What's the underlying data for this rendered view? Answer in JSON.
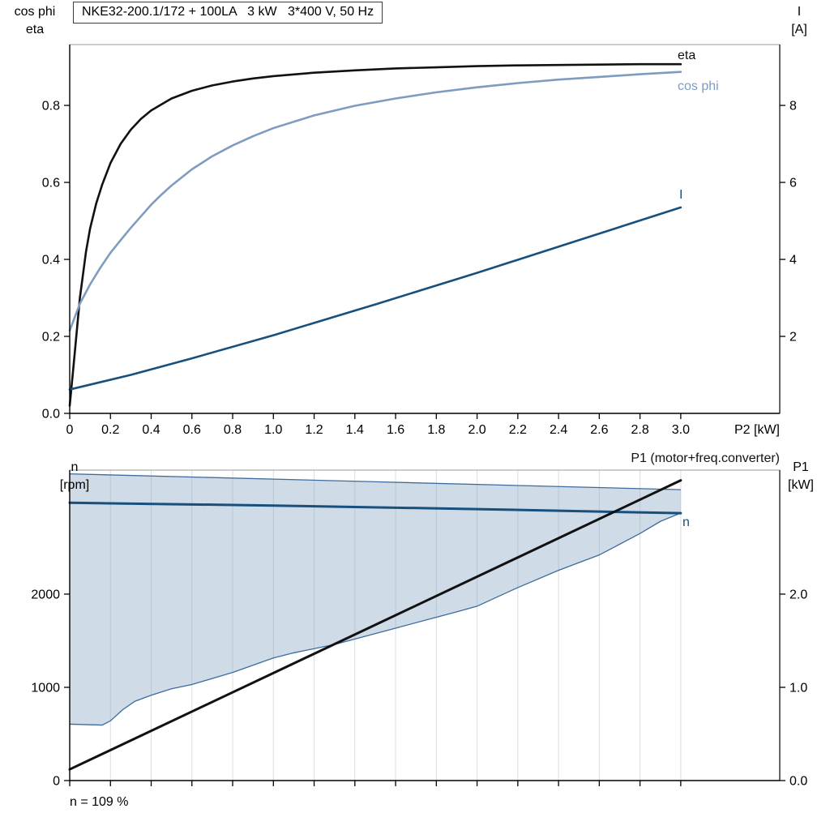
{
  "chart_data": [
    {
      "type": "line",
      "title": "NKE32-200.1/172 + 100LA   3 kW   3*400 V, 50 Hz",
      "x": {
        "label": "P2 [kW]",
        "min": 0,
        "max": 3.486,
        "show_labels": true,
        "ticks": [
          {
            "v": 0,
            "t": "0"
          },
          {
            "v": 0.2,
            "t": "0.2"
          },
          {
            "v": 0.4,
            "t": "0.4"
          },
          {
            "v": 0.6,
            "t": "0.6"
          },
          {
            "v": 0.8,
            "t": "0.8"
          },
          {
            "v": 1,
            "t": "1.0"
          },
          {
            "v": 1.2,
            "t": "1.2"
          },
          {
            "v": 1.4,
            "t": "1.4"
          },
          {
            "v": 1.6,
            "t": "1.6"
          },
          {
            "v": 1.8,
            "t": "1.8"
          },
          {
            "v": 2,
            "t": "2.0"
          },
          {
            "v": 2.2,
            "t": "2.2"
          },
          {
            "v": 2.4,
            "t": "2.4"
          },
          {
            "v": 2.6,
            "t": "2.6"
          },
          {
            "v": 2.8,
            "t": "2.8"
          },
          {
            "v": 3,
            "t": "3.0"
          }
        ]
      },
      "y_left": {
        "label_lines": [
          "cos phi",
          "eta"
        ],
        "min": 0,
        "max": 0.958,
        "ticks": [
          {
            "v": 0,
            "t": "0.0"
          },
          {
            "v": 0.2,
            "t": "0.2"
          },
          {
            "v": 0.4,
            "t": "0.4"
          },
          {
            "v": 0.6,
            "t": "0.6"
          },
          {
            "v": 0.8,
            "t": "0.8"
          }
        ]
      },
      "y_right": {
        "label_lines": [
          "I",
          "[A]"
        ],
        "min": 0,
        "max": 9.58,
        "ticks": [
          {
            "v": 2,
            "t": "2"
          },
          {
            "v": 4,
            "t": "4"
          },
          {
            "v": 6,
            "t": "6"
          },
          {
            "v": 8,
            "t": "8"
          }
        ]
      },
      "series": [
        {
          "name": "eta",
          "axis": "left",
          "color": "#111111",
          "width": 2.6,
          "points": [
            [
              0,
              0.02
            ],
            [
              0.02,
              0.13
            ],
            [
              0.05,
              0.3
            ],
            [
              0.08,
              0.42
            ],
            [
              0.1,
              0.48
            ],
            [
              0.13,
              0.545
            ],
            [
              0.16,
              0.595
            ],
            [
              0.2,
              0.65
            ],
            [
              0.25,
              0.7
            ],
            [
              0.3,
              0.737
            ],
            [
              0.35,
              0.765
            ],
            [
              0.4,
              0.787
            ],
            [
              0.5,
              0.818
            ],
            [
              0.6,
              0.838
            ],
            [
              0.7,
              0.852
            ],
            [
              0.8,
              0.862
            ],
            [
              0.9,
              0.87
            ],
            [
              1,
              0.876
            ],
            [
              1.2,
              0.885
            ],
            [
              1.4,
              0.891
            ],
            [
              1.6,
              0.896
            ],
            [
              1.8,
              0.899
            ],
            [
              2,
              0.902
            ],
            [
              2.2,
              0.904
            ],
            [
              2.4,
              0.905
            ],
            [
              2.6,
              0.906
            ],
            [
              2.8,
              0.907
            ],
            [
              3,
              0.907
            ]
          ]
        },
        {
          "name": "cos phi",
          "axis": "left",
          "color": "#7e9cc0",
          "width": 2.6,
          "points": [
            [
              0,
              0.215
            ],
            [
              0.05,
              0.285
            ],
            [
              0.1,
              0.335
            ],
            [
              0.15,
              0.378
            ],
            [
              0.2,
              0.417
            ],
            [
              0.25,
              0.45
            ],
            [
              0.3,
              0.482
            ],
            [
              0.35,
              0.512
            ],
            [
              0.4,
              0.542
            ],
            [
              0.45,
              0.568
            ],
            [
              0.5,
              0.592
            ],
            [
              0.6,
              0.634
            ],
            [
              0.7,
              0.668
            ],
            [
              0.8,
              0.696
            ],
            [
              0.9,
              0.72
            ],
            [
              1,
              0.741
            ],
            [
              1.2,
              0.774
            ],
            [
              1.4,
              0.799
            ],
            [
              1.6,
              0.818
            ],
            [
              1.8,
              0.834
            ],
            [
              2,
              0.847
            ],
            [
              2.2,
              0.858
            ],
            [
              2.4,
              0.867
            ],
            [
              2.6,
              0.874
            ],
            [
              2.8,
              0.881
            ],
            [
              3,
              0.887
            ]
          ]
        },
        {
          "name": "I",
          "axis": "right",
          "color": "#17507d",
          "width": 2.6,
          "points": [
            [
              0,
              0.62
            ],
            [
              0.3,
              1.0
            ],
            [
              0.6,
              1.43
            ],
            [
              1,
              2.03
            ],
            [
              1.5,
              2.83
            ],
            [
              2,
              3.65
            ],
            [
              2.5,
              4.5
            ],
            [
              3,
              5.35
            ]
          ]
        }
      ]
    },
    {
      "type": "line+band",
      "grid_x": true,
      "x": {
        "label": "",
        "min": 0,
        "max": 3.486,
        "show_labels": false,
        "ticks": [
          {
            "v": 0,
            "t": ""
          },
          {
            "v": 0.2,
            "t": ""
          },
          {
            "v": 0.4,
            "t": ""
          },
          {
            "v": 0.6,
            "t": ""
          },
          {
            "v": 0.8,
            "t": ""
          },
          {
            "v": 1,
            "t": ""
          },
          {
            "v": 1.2,
            "t": ""
          },
          {
            "v": 1.4,
            "t": ""
          },
          {
            "v": 1.6,
            "t": ""
          },
          {
            "v": 1.8,
            "t": ""
          },
          {
            "v": 2,
            "t": ""
          },
          {
            "v": 2.2,
            "t": ""
          },
          {
            "v": 2.4,
            "t": ""
          },
          {
            "v": 2.6,
            "t": ""
          },
          {
            "v": 2.8,
            "t": ""
          },
          {
            "v": 3,
            "t": ""
          }
        ]
      },
      "y_left": {
        "label_lines": [
          "n",
          "[rpm]"
        ],
        "min": 0,
        "max": 3330,
        "ticks": [
          {
            "v": 0,
            "t": "0"
          },
          {
            "v": 1000,
            "t": "1000"
          },
          {
            "v": 2000,
            "t": "2000"
          }
        ]
      },
      "y_right": {
        "label_lines": [
          "P1",
          "[kW]"
        ],
        "min": 0,
        "max": 3.33,
        "ticks": [
          {
            "v": 0,
            "t": "0.0"
          },
          {
            "v": 1,
            "t": "1.0"
          },
          {
            "v": 2,
            "t": "2.0"
          }
        ]
      },
      "band": {
        "fill": "#cfdbe7",
        "stroke": "#3d6c9c",
        "upper": [
          [
            0,
            3290
          ],
          [
            1.5,
            3205
          ],
          [
            3,
            3120
          ]
        ],
        "lower": [
          [
            0,
            605
          ],
          [
            0.16,
            595
          ],
          [
            0.2,
            640
          ],
          [
            0.26,
            760
          ],
          [
            0.32,
            850
          ],
          [
            0.4,
            915
          ],
          [
            0.5,
            985
          ],
          [
            0.6,
            1030
          ],
          [
            0.8,
            1160
          ],
          [
            1,
            1315
          ],
          [
            1.1,
            1370
          ],
          [
            1.3,
            1460
          ],
          [
            1.6,
            1635
          ],
          [
            1.9,
            1810
          ],
          [
            2,
            1870
          ],
          [
            2.2,
            2070
          ],
          [
            2.4,
            2255
          ],
          [
            2.6,
            2420
          ],
          [
            2.8,
            2650
          ],
          [
            2.9,
            2780
          ],
          [
            3,
            2870
          ]
        ]
      },
      "series": [
        {
          "name": "n",
          "axis": "left",
          "color": "#17507d",
          "width": 3,
          "points": [
            [
              0,
              2980
            ],
            [
              1,
              2950
            ],
            [
              2,
              2912
            ],
            [
              3,
              2868
            ]
          ]
        },
        {
          "name": "P1 (motor+freq.converter)",
          "axis": "right",
          "color": "#111111",
          "width": 3,
          "points": [
            [
              0,
              0.12
            ],
            [
              3,
              3.22
            ]
          ]
        }
      ],
      "note": "n = 109 %"
    }
  ]
}
